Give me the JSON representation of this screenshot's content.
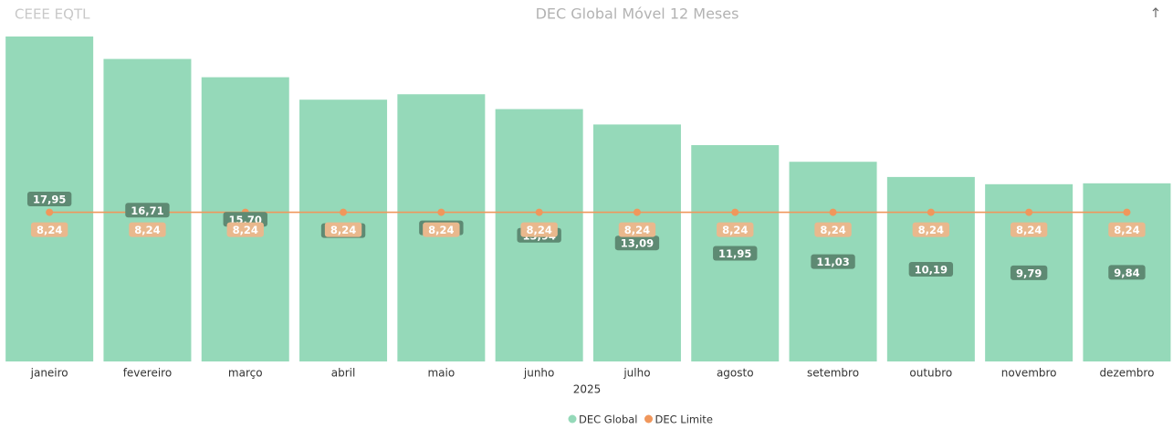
{
  "chart_data": {
    "type": "combo",
    "header": "CEEE EQTL",
    "title": "DEC Global Móvel 12 Meses",
    "xlabel": "2025",
    "categories": [
      "janeiro",
      "fevereiro",
      "março",
      "abril",
      "maio",
      "junho",
      "julho",
      "agosto",
      "setembro",
      "outubro",
      "novembro",
      "dezembro"
    ],
    "series": [
      {
        "name": "DEC Global",
        "type": "bar",
        "color": "#95d9b9",
        "label_color": "#5e8a73",
        "values": [
          17.95,
          16.71,
          15.7,
          14.46,
          14.76,
          13.94,
          13.09,
          11.95,
          11.03,
          10.19,
          9.79,
          9.84
        ],
        "value_labels": [
          "17,95",
          "16,71",
          "15,70",
          "14,46",
          "14,76",
          "13,94",
          "13,09",
          "11,95",
          "11,03",
          "10,19",
          "9,79",
          "9,84"
        ]
      },
      {
        "name": "DEC Limite",
        "type": "line",
        "color": "#f0975c",
        "label_color": "#e9b88d",
        "values": [
          8.24,
          8.24,
          8.24,
          8.24,
          8.24,
          8.24,
          8.24,
          8.24,
          8.24,
          8.24,
          8.24,
          8.24
        ],
        "value_labels": [
          "8,24",
          "8,24",
          "8,24",
          "8,24",
          "8,24",
          "8,24",
          "8,24",
          "8,24",
          "8,24",
          "8,24",
          "8,24",
          "8,24"
        ]
      }
    ],
    "ylim": [
      0,
      18
    ],
    "legend": "bottom"
  }
}
